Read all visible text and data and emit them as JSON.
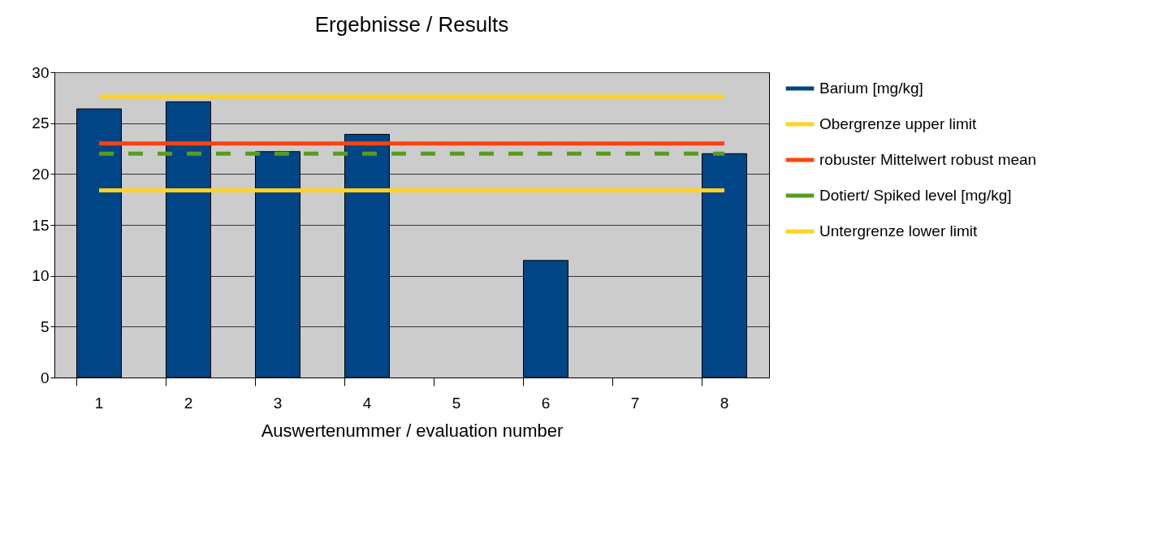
{
  "chart_data": {
    "type": "bar",
    "title": "Ergebnisse / Results",
    "xlabel": "Auswertenummer / evaluation number",
    "categories": [
      "1",
      "2",
      "3",
      "4",
      "5",
      "6",
      "7",
      "8"
    ],
    "ylim": [
      0,
      30
    ],
    "yticks": [
      0,
      5,
      10,
      15,
      20,
      25,
      30
    ],
    "grid": "y",
    "legend": "right",
    "series": [
      {
        "name": "Barium [mg/kg]",
        "color": "#004586",
        "values": [
          26.4,
          27.1,
          22.2,
          23.9,
          null,
          11.5,
          null,
          22.0
        ]
      },
      {
        "name": "Obergrenze upper limit",
        "type": "line",
        "color": "#ffd320",
        "values": [
          27.6,
          27.6,
          27.6,
          27.6,
          27.6,
          27.6,
          27.6,
          27.6
        ]
      },
      {
        "name": "robuster Mittelwert robust mean",
        "type": "line",
        "color": "#ff420e",
        "values": [
          23.0,
          23.0,
          23.0,
          23.0,
          23.0,
          23.0,
          23.0,
          23.0
        ]
      },
      {
        "name": "Dotiert/ Spiked level [mg/kg]",
        "type": "line",
        "color": "#579d1c",
        "line_style": "dashed",
        "values": [
          22.0,
          22.0,
          22.0,
          22.0,
          22.0,
          22.0,
          22.0,
          22.0
        ]
      },
      {
        "name": "Untergrenze lower limit",
        "type": "line",
        "color": "#ffd320",
        "values": [
          18.4,
          18.4,
          18.4,
          18.4,
          18.4,
          18.4,
          18.4,
          18.4
        ]
      }
    ]
  }
}
